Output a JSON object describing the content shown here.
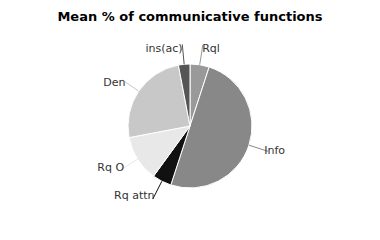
{
  "chart_data": {
    "type": "pie",
    "title": "Mean % of communicative functions",
    "categories": [
      "Rql",
      "Info",
      "Rq attn",
      "Rq O",
      "Den",
      "ins(ac)"
    ],
    "values": [
      5,
      50,
      5,
      12,
      25,
      3
    ],
    "colors": [
      "#999999",
      "#888888",
      "#111111",
      "#e8e8e8",
      "#c8c8c8",
      "#555555"
    ]
  }
}
